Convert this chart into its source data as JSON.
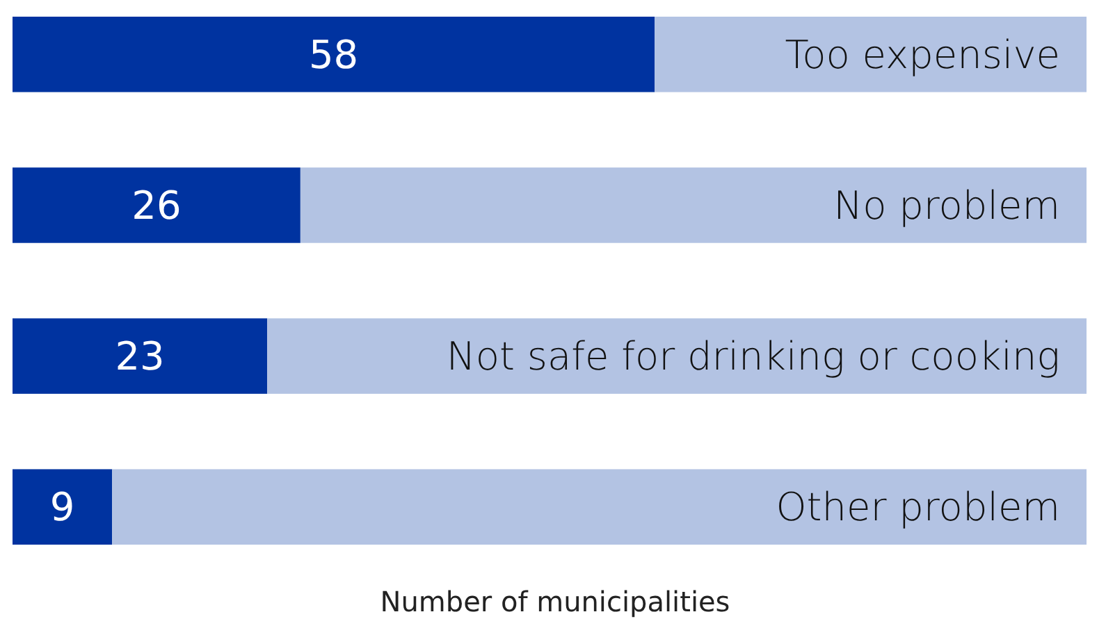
{
  "chart_data": {
    "type": "bar",
    "orientation": "horizontal",
    "stacked": true,
    "xlabel": "Number of municipalities",
    "categories": [
      "Too expensive",
      "No problem",
      "Not safe for drinking or cooking",
      "Other problem"
    ],
    "xlim": [
      0,
      97
    ],
    "series": [
      {
        "color": "#0033a0",
        "values": [
          58,
          26,
          23,
          9
        ],
        "value_labels": [
          "58",
          "26",
          "23",
          "9"
        ]
      },
      {
        "color": "#b3c3e3",
        "values": [
          39,
          71,
          74,
          88
        ]
      }
    ]
  }
}
